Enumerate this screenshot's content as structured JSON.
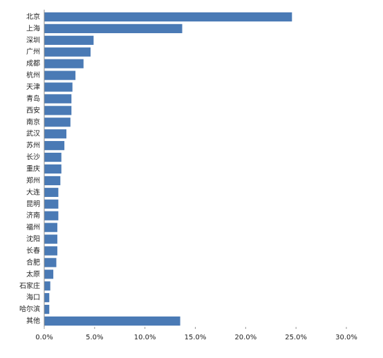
{
  "chart_data": {
    "type": "bar",
    "orientation": "horizontal",
    "color": "#4a7ab5",
    "categories": [
      "北京",
      "上海",
      "深圳",
      "广州",
      "成都",
      "杭州",
      "天津",
      "青岛",
      "西安",
      "南京",
      "武汉",
      "苏州",
      "长沙",
      "重庆",
      "郑州",
      "大连",
      "昆明",
      "济南",
      "福州",
      "沈阳",
      "长春",
      "合肥",
      "太原",
      "石家庄",
      "海口",
      "哈尔滨",
      "其他"
    ],
    "values": [
      24.6,
      13.7,
      4.9,
      4.6,
      3.9,
      3.1,
      2.8,
      2.7,
      2.7,
      2.6,
      2.2,
      2.0,
      1.7,
      1.7,
      1.6,
      1.4,
      1.4,
      1.4,
      1.3,
      1.3,
      1.3,
      1.2,
      0.9,
      0.6,
      0.5,
      0.5,
      13.5
    ],
    "xlim": [
      0,
      30
    ],
    "xticks": [
      {
        "value": 0,
        "label": "0.0%"
      },
      {
        "value": 5,
        "label": "5.0%"
      },
      {
        "value": 10,
        "label": "10.0%"
      },
      {
        "value": 15,
        "label": "15.0%"
      },
      {
        "value": 20,
        "label": "20.0%"
      },
      {
        "value": 25,
        "label": "25.0%"
      },
      {
        "value": 30,
        "label": "30.0%"
      }
    ],
    "grid": false
  }
}
